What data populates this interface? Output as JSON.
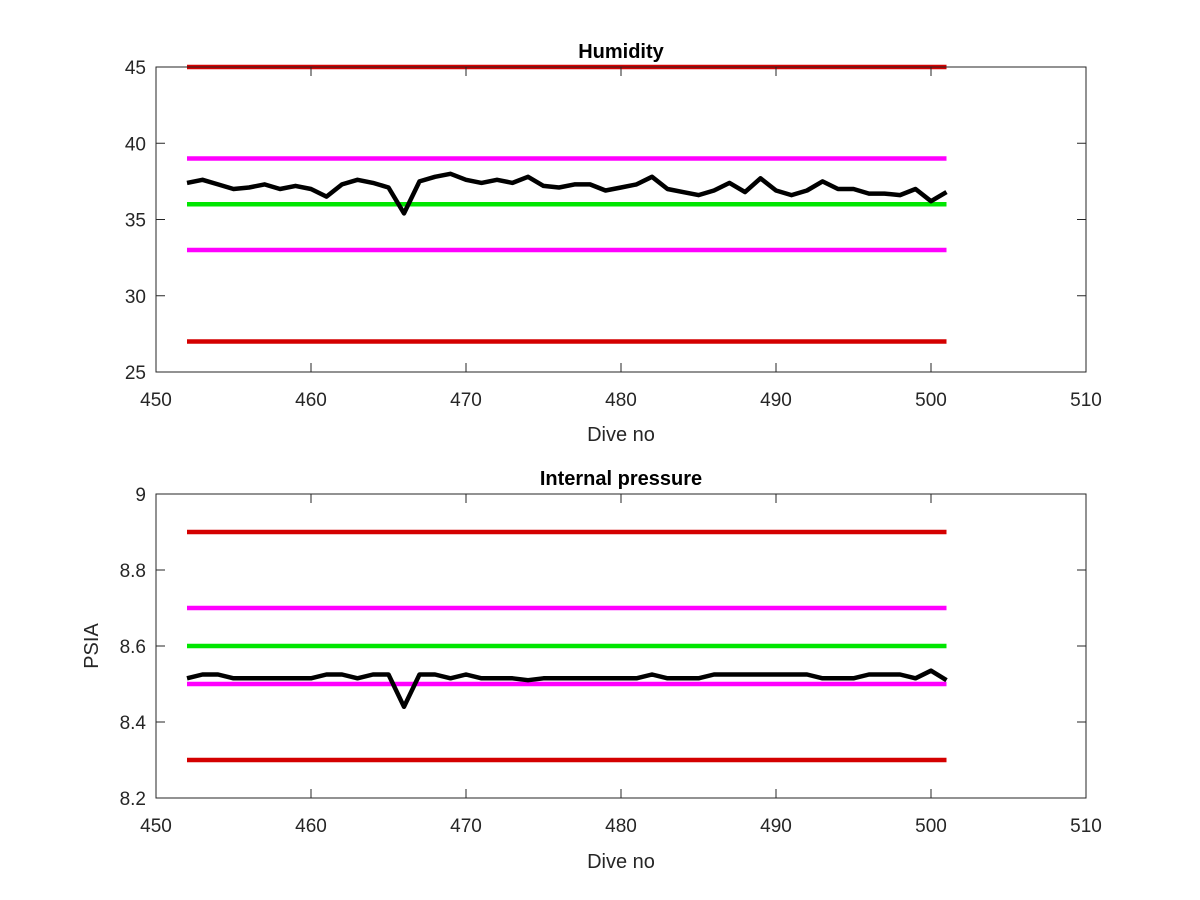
{
  "chart_data": [
    {
      "type": "line",
      "title": "Humidity",
      "xlabel": "Dive no",
      "ylabel": "",
      "xlim": [
        450,
        510
      ],
      "ylim": [
        25,
        45
      ],
      "xticks": [
        "450",
        "460",
        "470",
        "480",
        "490",
        "500",
        "510"
      ],
      "yticks": [
        "25",
        "30",
        "35",
        "40",
        "45"
      ],
      "grid": false,
      "series": [
        {
          "color": "#d40000",
          "x": [
            452,
            501
          ],
          "y": [
            45,
            45
          ]
        },
        {
          "color": "#ff00ff",
          "x": [
            452,
            501
          ],
          "y": [
            39,
            39
          ]
        },
        {
          "color": "#00e600",
          "x": [
            452,
            501
          ],
          "y": [
            36,
            36
          ]
        },
        {
          "color": "#ff00ff",
          "x": [
            452,
            501
          ],
          "y": [
            33,
            33
          ]
        },
        {
          "color": "#d40000",
          "x": [
            452,
            501
          ],
          "y": [
            27,
            27
          ]
        },
        {
          "color": "#000000",
          "x": [
            452,
            453,
            454,
            455,
            456,
            457,
            458,
            459,
            460,
            461,
            462,
            463,
            464,
            465,
            466,
            467,
            468,
            469,
            470,
            471,
            472,
            473,
            474,
            475,
            476,
            477,
            478,
            479,
            480,
            481,
            482,
            483,
            484,
            485,
            486,
            487,
            488,
            489,
            490,
            491,
            492,
            493,
            494,
            495,
            496,
            497,
            498,
            499,
            500,
            501
          ],
          "y": [
            37.4,
            37.6,
            37.3,
            37.0,
            37.1,
            37.3,
            37.0,
            37.2,
            37.0,
            36.5,
            37.3,
            37.6,
            37.4,
            37.1,
            35.4,
            37.5,
            37.8,
            38.0,
            37.6,
            37.4,
            37.6,
            37.4,
            37.8,
            37.2,
            37.1,
            37.3,
            37.3,
            36.9,
            37.1,
            37.3,
            37.8,
            37.0,
            36.8,
            36.6,
            36.9,
            37.4,
            36.8,
            37.7,
            36.9,
            36.6,
            36.9,
            37.5,
            37.0,
            37.0,
            36.7,
            36.7,
            36.6,
            37.0,
            36.2,
            36.8
          ]
        }
      ]
    },
    {
      "type": "line",
      "title": "Internal pressure",
      "xlabel": "Dive no",
      "ylabel": "PSIA",
      "xlim": [
        450,
        510
      ],
      "ylim": [
        8.2,
        9
      ],
      "xticks": [
        "450",
        "460",
        "470",
        "480",
        "490",
        "500",
        "510"
      ],
      "yticks": [
        "8.2",
        "8.4",
        "8.6",
        "8.8",
        "9"
      ],
      "grid": false,
      "series": [
        {
          "color": "#d40000",
          "x": [
            452,
            501
          ],
          "y": [
            8.9,
            8.9
          ]
        },
        {
          "color": "#ff00ff",
          "x": [
            452,
            501
          ],
          "y": [
            8.7,
            8.7
          ]
        },
        {
          "color": "#00e600",
          "x": [
            452,
            501
          ],
          "y": [
            8.6,
            8.6
          ]
        },
        {
          "color": "#ff00ff",
          "x": [
            452,
            501
          ],
          "y": [
            8.5,
            8.5
          ]
        },
        {
          "color": "#d40000",
          "x": [
            452,
            501
          ],
          "y": [
            8.3,
            8.3
          ]
        },
        {
          "color": "#000000",
          "x": [
            452,
            453,
            454,
            455,
            456,
            457,
            458,
            459,
            460,
            461,
            462,
            463,
            464,
            465,
            466,
            467,
            468,
            469,
            470,
            471,
            472,
            473,
            474,
            475,
            476,
            477,
            478,
            479,
            480,
            481,
            482,
            483,
            484,
            485,
            486,
            487,
            488,
            489,
            490,
            491,
            492,
            493,
            494,
            495,
            496,
            497,
            498,
            499,
            500,
            501
          ],
          "y": [
            8.515,
            8.525,
            8.525,
            8.515,
            8.515,
            8.515,
            8.515,
            8.515,
            8.515,
            8.525,
            8.525,
            8.515,
            8.525,
            8.525,
            8.44,
            8.525,
            8.525,
            8.515,
            8.525,
            8.515,
            8.515,
            8.515,
            8.51,
            8.515,
            8.515,
            8.515,
            8.515,
            8.515,
            8.515,
            8.515,
            8.525,
            8.515,
            8.515,
            8.515,
            8.525,
            8.525,
            8.525,
            8.525,
            8.525,
            8.525,
            8.525,
            8.515,
            8.515,
            8.515,
            8.525,
            8.525,
            8.525,
            8.515,
            8.535,
            8.51
          ]
        }
      ]
    }
  ]
}
